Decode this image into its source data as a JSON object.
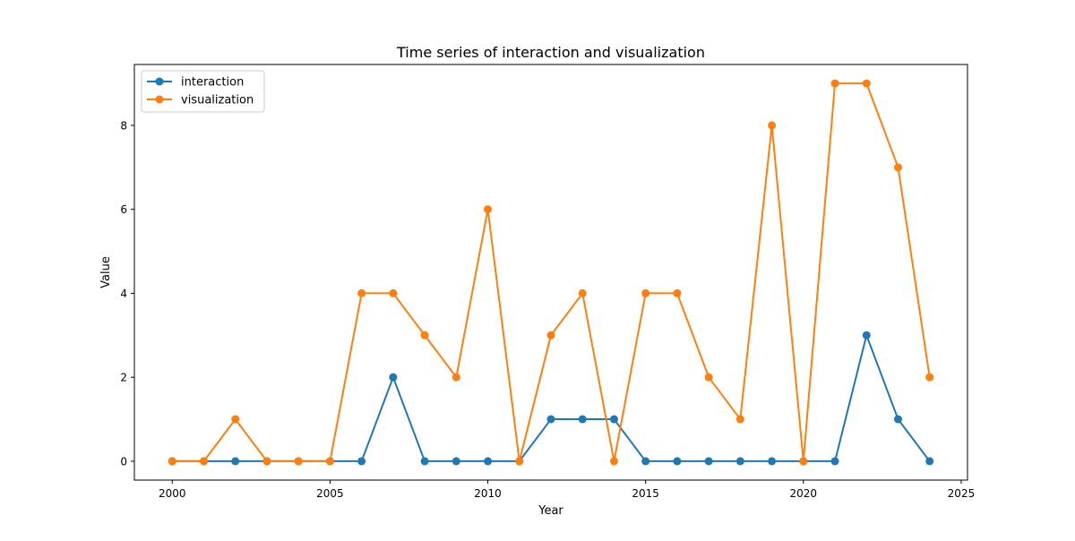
{
  "chart_data": {
    "type": "line",
    "title": "Time series of interaction and visualization",
    "xlabel": "Year",
    "ylabel": "Value",
    "x": [
      2000,
      2001,
      2002,
      2003,
      2004,
      2005,
      2006,
      2007,
      2008,
      2009,
      2010,
      2011,
      2012,
      2013,
      2014,
      2015,
      2016,
      2017,
      2018,
      2019,
      2020,
      2021,
      2022,
      2023,
      2024
    ],
    "series": [
      {
        "name": "interaction",
        "color": "#1f77b4",
        "values": [
          0,
          0,
          0,
          0,
          0,
          0,
          0,
          2,
          0,
          0,
          0,
          0,
          1,
          1,
          1,
          0,
          0,
          0,
          0,
          0,
          0,
          0,
          3,
          1,
          0
        ]
      },
      {
        "name": "visualization",
        "color": "#ff7f0e",
        "values": [
          0,
          0,
          1,
          0,
          0,
          0,
          4,
          4,
          3,
          2,
          6,
          0,
          3,
          4,
          0,
          4,
          4,
          2,
          1,
          8,
          0,
          9,
          9,
          7,
          2
        ]
      }
    ],
    "xlim": [
      1998.8,
      2025.2
    ],
    "ylim": [
      -0.45,
      9.45
    ],
    "xticks": [
      2000,
      2005,
      2010,
      2015,
      2020,
      2025
    ],
    "yticks": [
      0,
      2,
      4,
      6,
      8
    ],
    "xtick_labels": [
      "2000",
      "2005",
      "2010",
      "2015",
      "2020",
      "2025"
    ],
    "ytick_labels": [
      "0",
      "2",
      "4",
      "6",
      "8"
    ],
    "legend_position": "top-left",
    "grid": false
  }
}
